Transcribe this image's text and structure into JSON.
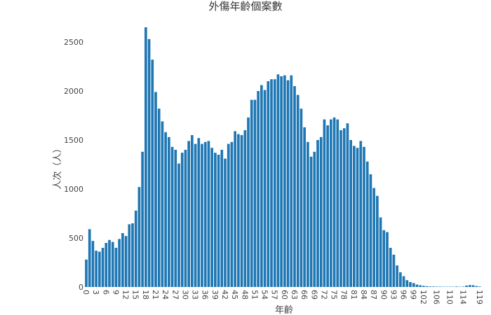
{
  "chart_data": {
    "type": "bar",
    "title": "外傷年齡個案數",
    "xlabel": "年齡",
    "ylabel": "人次（人）",
    "x": [
      0,
      1,
      2,
      3,
      4,
      5,
      6,
      7,
      8,
      9,
      10,
      11,
      12,
      13,
      14,
      15,
      16,
      17,
      18,
      19,
      20,
      21,
      22,
      23,
      24,
      25,
      26,
      27,
      28,
      29,
      30,
      31,
      32,
      33,
      34,
      35,
      36,
      37,
      38,
      39,
      40,
      41,
      42,
      43,
      44,
      45,
      46,
      47,
      48,
      49,
      50,
      51,
      52,
      53,
      54,
      55,
      56,
      57,
      58,
      59,
      60,
      61,
      62,
      63,
      64,
      65,
      66,
      67,
      68,
      69,
      70,
      71,
      72,
      73,
      74,
      75,
      76,
      77,
      78,
      79,
      80,
      81,
      82,
      83,
      84,
      85,
      86,
      87,
      88,
      89,
      90,
      91,
      92,
      93,
      94,
      95,
      96,
      97,
      98,
      99,
      100,
      101,
      102,
      103,
      104,
      105,
      106,
      107,
      108,
      109,
      110,
      111,
      112,
      113,
      114,
      115,
      116,
      117,
      118,
      119
    ],
    "values": [
      280,
      590,
      470,
      370,
      360,
      400,
      450,
      480,
      460,
      400,
      490,
      550,
      520,
      640,
      650,
      780,
      1020,
      1380,
      2650,
      2530,
      2320,
      1990,
      1820,
      1690,
      1580,
      1530,
      1430,
      1400,
      1260,
      1370,
      1400,
      1490,
      1550,
      1460,
      1520,
      1460,
      1480,
      1490,
      1420,
      1370,
      1350,
      1400,
      1310,
      1460,
      1480,
      1590,
      1560,
      1550,
      1600,
      1730,
      1910,
      1910,
      2000,
      2060,
      2010,
      2100,
      2120,
      2120,
      2170,
      2150,
      2160,
      2110,
      2160,
      2050,
      1960,
      1820,
      1630,
      1480,
      1330,
      1380,
      1500,
      1530,
      1710,
      1650,
      1710,
      1730,
      1710,
      1600,
      1620,
      1670,
      1500,
      1440,
      1420,
      1490,
      1430,
      1280,
      1150,
      1010,
      930,
      710,
      580,
      560,
      400,
      330,
      220,
      150,
      110,
      70,
      50,
      40,
      25,
      18,
      12,
      8,
      6,
      5,
      4,
      4,
      3,
      3,
      3,
      3,
      5,
      3,
      4,
      15,
      20,
      18,
      10,
      5
    ],
    "x_ticks": [
      "0",
      "3",
      "6",
      "9",
      "12",
      "15",
      "18",
      "21",
      "24",
      "27",
      "30",
      "33",
      "36",
      "39",
      "42",
      "45",
      "48",
      "51",
      "54",
      "57",
      "60",
      "63",
      "66",
      "69",
      "72",
      "75",
      "78",
      "81",
      "84",
      "87",
      "90",
      "93",
      "96",
      "99",
      "102",
      "106",
      "110",
      "114",
      "119"
    ],
    "y_ticks": [
      "0",
      "500",
      "1000",
      "1500",
      "2000",
      "2500"
    ],
    "ylim": [
      0,
      2700
    ],
    "grid": false,
    "legend": "none",
    "bar_color": "#1f77b4"
  }
}
